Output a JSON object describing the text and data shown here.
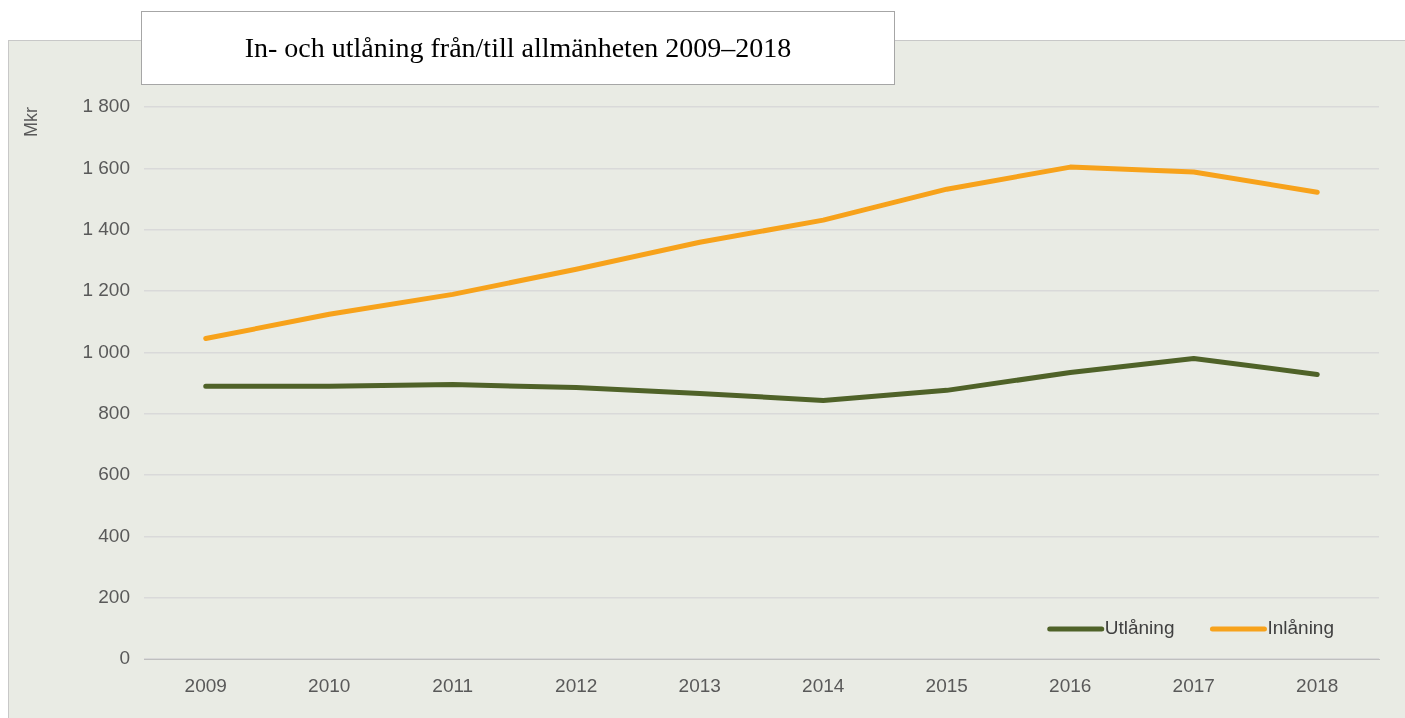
{
  "chart_data": {
    "type": "line",
    "title": "In- och utlåning från/till allmänheten 2009–2018",
    "ylabel": "Mkr",
    "categories": [
      "2009",
      "2010",
      "2011",
      "2012",
      "2013",
      "2014",
      "2015",
      "2016",
      "2017",
      "2018"
    ],
    "series": [
      {
        "name": "Utlåning",
        "color": "#4f6228",
        "values": [
          889,
          889,
          895,
          885,
          866,
          843,
          876,
          934,
          980,
          928
        ]
      },
      {
        "name": "Inlåning",
        "color": "#f7a21b",
        "values": [
          1045,
          1124,
          1189,
          1271,
          1359,
          1431,
          1532,
          1604,
          1588,
          1522
        ]
      }
    ],
    "ylim": [
      0,
      1800
    ],
    "yticks": [
      0,
      200,
      400,
      600,
      800,
      {
        "value": 1000,
        "label": "1 000"
      },
      {
        "value": 1200,
        "label": "1 200"
      },
      {
        "value": 1400,
        "label": "1 400"
      },
      {
        "value": 1600,
        "label": "1 600"
      },
      {
        "value": 1800,
        "label": "1 800"
      }
    ],
    "grid": "y",
    "legend": "bottom right",
    "marker": "none",
    "line_style": "solid"
  }
}
